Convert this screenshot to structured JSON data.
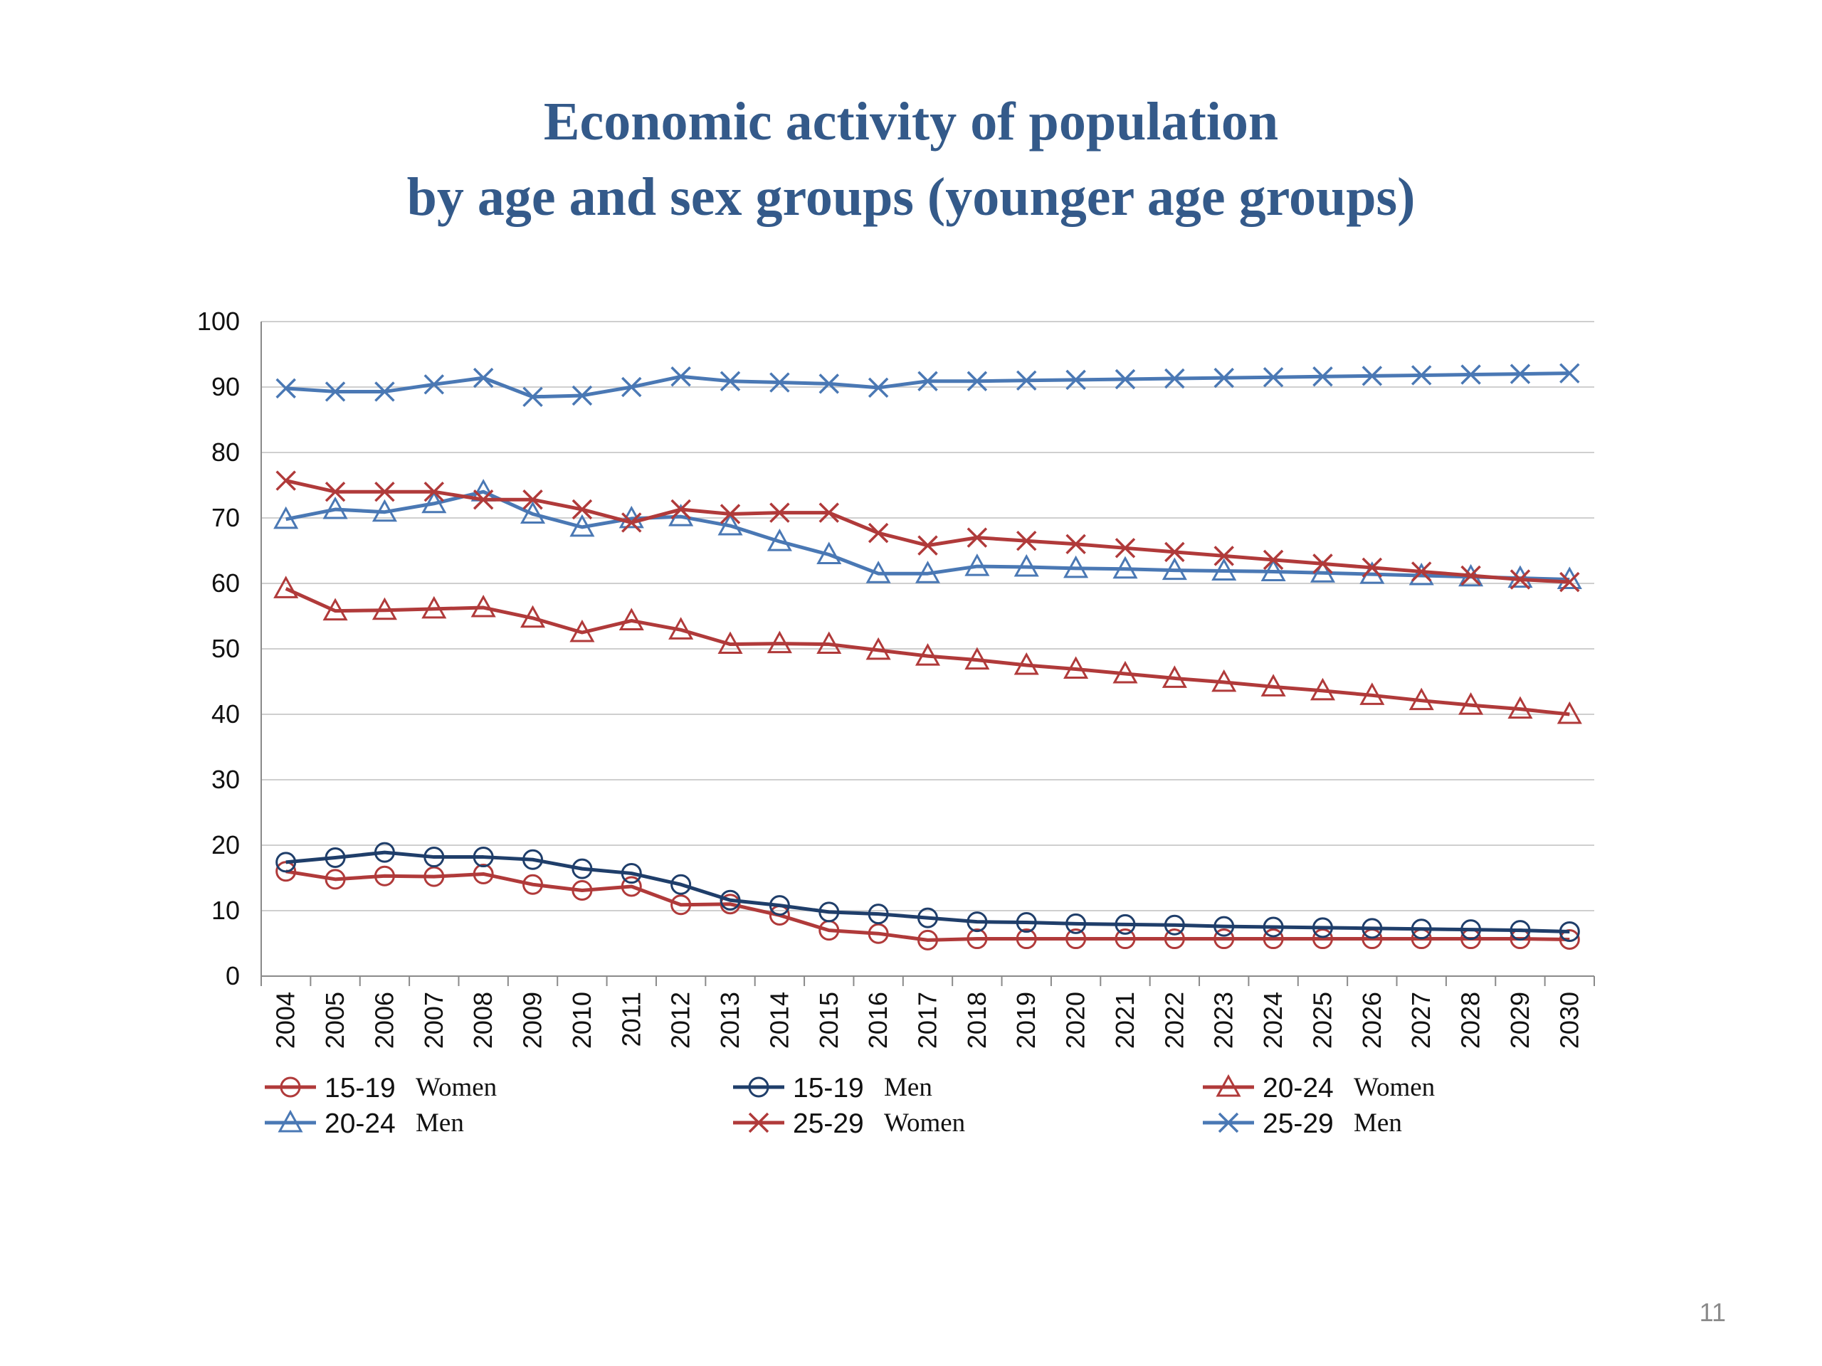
{
  "slide": {
    "title_line1": "Economic activity of population",
    "title_line2": "by age and sex groups (younger age groups)",
    "page_number": "11"
  },
  "colors": {
    "women": "#b03a3a",
    "men_dark": "#1f3e6a",
    "men_blue": "#4a78b4",
    "grid": "#cfcfcf",
    "title": "#345a8a"
  },
  "chart_data": {
    "type": "line",
    "title": "",
    "xlabel": "",
    "ylabel": "",
    "ylim": [
      0,
      100
    ],
    "yticks": [
      0,
      10,
      20,
      30,
      40,
      50,
      60,
      70,
      80,
      90,
      100
    ],
    "grid": true,
    "legend_position": "bottom",
    "x": [
      "2004",
      "2005",
      "2006",
      "2007",
      "2008",
      "2009",
      "2010",
      "2011",
      "2012",
      "2013",
      "2014",
      "2015",
      "2016",
      "2017",
      "2018",
      "2019",
      "2020",
      "2021",
      "2022",
      "2023",
      "2024",
      "2025",
      "2026",
      "2027",
      "2028",
      "2029",
      "2030"
    ],
    "series": [
      {
        "name": "15-19 Women",
        "age_range": "15-19",
        "sex": "Women",
        "marker": "circle",
        "color": "#b03a3a",
        "values": [
          16.0,
          14.8,
          15.3,
          15.2,
          15.6,
          14.0,
          13.1,
          13.7,
          10.9,
          11.0,
          9.3,
          7.0,
          6.5,
          5.5,
          5.7,
          5.7,
          5.7,
          5.7,
          5.7,
          5.7,
          5.7,
          5.7,
          5.7,
          5.7,
          5.7,
          5.7,
          5.6
        ]
      },
      {
        "name": "15-19 Men",
        "age_range": "15-19",
        "sex": "Men",
        "marker": "circle",
        "color": "#1f3e6a",
        "values": [
          17.4,
          18.1,
          18.9,
          18.2,
          18.2,
          17.8,
          16.4,
          15.7,
          14.0,
          11.6,
          10.8,
          9.8,
          9.5,
          8.9,
          8.3,
          8.2,
          8.0,
          7.9,
          7.8,
          7.6,
          7.5,
          7.4,
          7.3,
          7.2,
          7.1,
          7.0,
          6.8
        ]
      },
      {
        "name": "20-24 Women",
        "age_range": "20-24",
        "sex": "Women",
        "marker": "triangle",
        "color": "#b03a3a",
        "values": [
          59.2,
          55.8,
          55.9,
          56.1,
          56.3,
          54.7,
          52.5,
          54.3,
          52.9,
          50.7,
          50.8,
          50.7,
          49.8,
          48.9,
          48.3,
          47.5,
          46.9,
          46.2,
          45.5,
          44.9,
          44.2,
          43.6,
          42.9,
          42.1,
          41.4,
          40.8,
          40.0
        ]
      },
      {
        "name": "20-24 Men",
        "age_range": "20-24",
        "sex": "Men",
        "marker": "triangle",
        "color": "#4a78b4",
        "values": [
          69.8,
          71.3,
          70.9,
          72.2,
          74.0,
          70.6,
          68.6,
          69.9,
          70.2,
          68.8,
          66.4,
          64.4,
          61.5,
          61.5,
          62.6,
          62.5,
          62.3,
          62.2,
          62.0,
          61.9,
          61.8,
          61.6,
          61.4,
          61.2,
          61.0,
          60.8,
          60.6
        ]
      },
      {
        "name": "25-29 Women",
        "age_range": "25-29",
        "sex": "Women",
        "marker": "x",
        "color": "#b03a3a",
        "values": [
          75.7,
          74.0,
          74.0,
          74.0,
          72.8,
          72.8,
          71.3,
          69.3,
          71.3,
          70.6,
          70.8,
          70.8,
          67.7,
          65.8,
          67.0,
          66.5,
          66.0,
          65.4,
          64.8,
          64.2,
          63.6,
          63.0,
          62.4,
          61.8,
          61.2,
          60.6,
          60.2
        ]
      },
      {
        "name": "25-29 Men",
        "age_range": "25-29",
        "sex": "Men",
        "marker": "x",
        "color": "#4a78b4",
        "values": [
          89.8,
          89.3,
          89.3,
          90.4,
          91.4,
          88.5,
          88.7,
          90.0,
          91.6,
          90.9,
          90.7,
          90.5,
          89.9,
          90.9,
          90.9,
          91.0,
          91.1,
          91.2,
          91.3,
          91.4,
          91.5,
          91.6,
          91.7,
          91.8,
          91.9,
          92.0,
          92.1
        ]
      }
    ]
  }
}
